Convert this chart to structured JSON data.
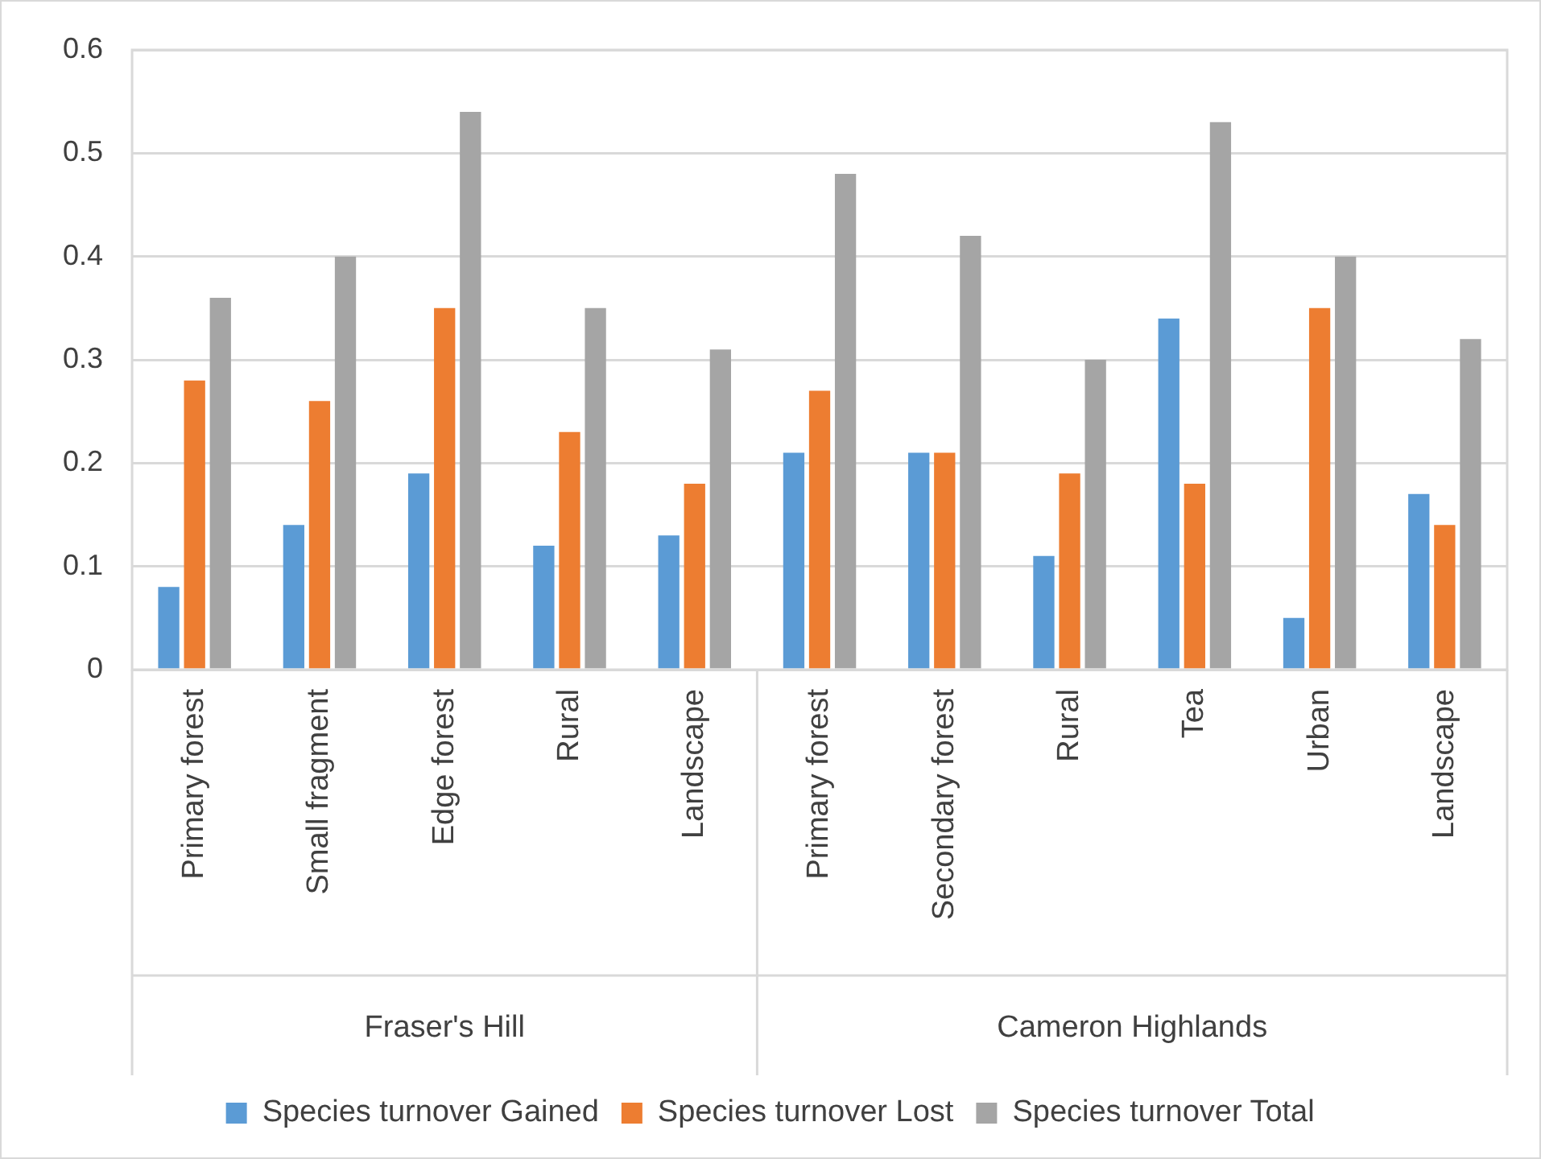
{
  "chart_data": {
    "type": "bar",
    "categories": [
      "Primary forest",
      "Small fragment",
      "Edge forest",
      "Rural",
      "Landscape",
      "Primary forest",
      "Secondary forest",
      "Rural",
      "Tea",
      "Urban",
      "Landscape"
    ],
    "series": [
      {
        "name": "Species turnover Gained",
        "color": "#5b9bd5",
        "values": [
          0.08,
          0.14,
          0.19,
          0.12,
          0.13,
          0.21,
          0.21,
          0.11,
          0.34,
          0.05,
          0.17
        ]
      },
      {
        "name": "Species turnover Lost",
        "color": "#ed7d31",
        "values": [
          0.28,
          0.26,
          0.35,
          0.23,
          0.18,
          0.27,
          0.21,
          0.19,
          0.18,
          0.35,
          0.14
        ]
      },
      {
        "name": "Species turnover Total",
        "color": "#a5a5a5",
        "values": [
          0.36,
          0.4,
          0.54,
          0.35,
          0.31,
          0.48,
          0.42,
          0.3,
          0.53,
          0.4,
          0.32
        ]
      }
    ],
    "annotations": [
      "Fraser's Hill",
      "Cameron Highlands"
    ],
    "ylim": [
      0,
      0.6
    ],
    "yticks": [
      0,
      0.1,
      0.2,
      0.3,
      0.4,
      0.5,
      0.6
    ],
    "grid": "y",
    "legend": "bottom"
  }
}
